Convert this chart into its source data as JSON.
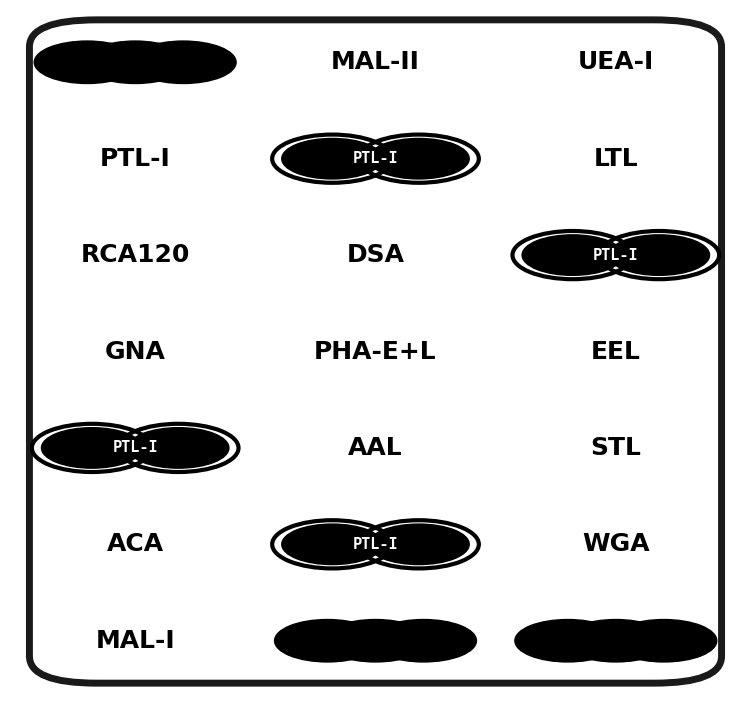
{
  "grid": [
    [
      {
        "type": "beads",
        "n": 3,
        "style": "solid"
      },
      {
        "type": "text",
        "label": "MAL-II"
      },
      {
        "type": "text",
        "label": "UEA-I"
      }
    ],
    [
      {
        "type": "text",
        "label": "PTL-I"
      },
      {
        "type": "beads",
        "n": 2,
        "style": "outline",
        "label": "PTL-I"
      },
      {
        "type": "text",
        "label": "LTL"
      }
    ],
    [
      {
        "type": "text",
        "label": "RCA120"
      },
      {
        "type": "text",
        "label": "DSA"
      },
      {
        "type": "beads",
        "n": 2,
        "style": "outline",
        "label": "PTL-I"
      }
    ],
    [
      {
        "type": "text",
        "label": "GNA"
      },
      {
        "type": "text",
        "label": "PHA-E+L"
      },
      {
        "type": "text",
        "label": "EEL"
      }
    ],
    [
      {
        "type": "beads",
        "n": 2,
        "style": "outline",
        "label": "PTL-I"
      },
      {
        "type": "text",
        "label": "AAL"
      },
      {
        "type": "text",
        "label": "STL"
      }
    ],
    [
      {
        "type": "text",
        "label": "ACA"
      },
      {
        "type": "beads",
        "n": 2,
        "style": "outline",
        "label": "PTL-I"
      },
      {
        "type": "text",
        "label": "WGA"
      }
    ],
    [
      {
        "type": "text",
        "label": "MAL-I"
      },
      {
        "type": "beads",
        "n": 3,
        "style": "solid"
      },
      {
        "type": "beads",
        "n": 3,
        "style": "solid"
      }
    ]
  ],
  "bead_color_solid": "#000000",
  "bead_color_outline": "#000000",
  "text_color": "#000000",
  "bg_color": "#ffffff",
  "border_color": "#1a1a1a",
  "font_size": 18,
  "bead_font_size": 11,
  "fig_width": 7.51,
  "fig_height": 7.03
}
